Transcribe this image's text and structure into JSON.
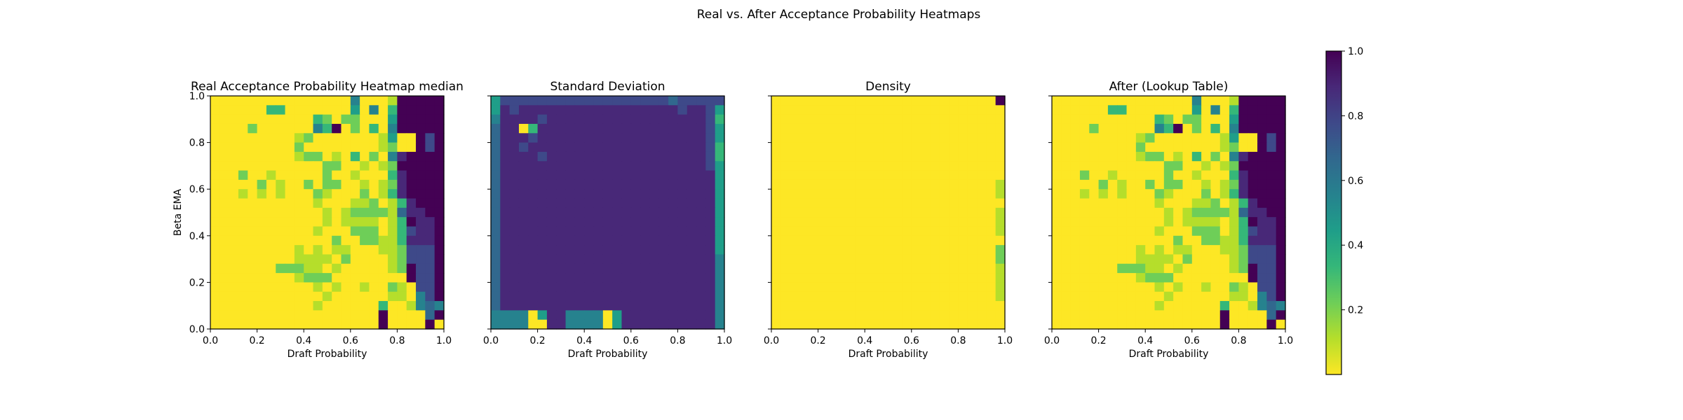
{
  "figure": {
    "suptitle": "Real vs. After Acceptance Probability Heatmaps"
  },
  "colormap": {
    "name": "viridis_r",
    "stops": [
      "#fde725",
      "#b5de2b",
      "#6ece58",
      "#35b779",
      "#1f9e89",
      "#26828e",
      "#31688e",
      "#3e4989",
      "#482878",
      "#440154"
    ]
  },
  "colorbar": {
    "min": 0.0,
    "max": 1.0,
    "ticks": [
      0.2,
      0.4,
      0.6,
      0.8,
      1.0
    ],
    "tick_labels": [
      "0.2",
      "0.4",
      "0.6",
      "0.8",
      "1.0"
    ]
  },
  "axes_common": {
    "xlabel": "Draft Probability",
    "ylabel": "Beta EMA",
    "xticks": [
      "0.0",
      "0.2",
      "0.4",
      "0.6",
      "0.8",
      "1.0"
    ],
    "yticks": [
      "0.0",
      "0.2",
      "0.4",
      "0.6",
      "0.8",
      "1.0"
    ],
    "xlim": [
      0,
      1
    ],
    "ylim": [
      0,
      1
    ]
  },
  "chart_data": [
    {
      "type": "heatmap",
      "title": "Real Acceptance Probability Heatmap median",
      "xlabel": "Draft Probability",
      "ylabel": "Beta EMA",
      "xlim": [
        0,
        1
      ],
      "ylim": [
        0,
        1
      ],
      "rows_top_to_bottom": [
        "0000000000000005000199999",
        "0000003300000004050399999",
        "0000000000032022000499999",
        "0000200000053902030599999",
        "0000000001200000001400979",
        "0000000002000000001200979",
        "0000000001220103020589999",
        "0000000000002200101299999",
        "0002001000002001000389999",
        "0000020100202200101289999",
        "0001010100021000201389999",
        "0000000000010001120138999",
        "0000000000001012222168899",
        "0000000000001011110139889",
        "0000000000010002220137889",
        "0000000000000200221138889",
        "0000000001010110001127779",
        "0000000001111020000127779",
        "0000000222110100000129779",
        "0000000001222000000009779",
        "0000000000010100100210779",
        "0000000000001000000110579",
        "0000000000010000003001565",
        "0000000000000000009000069",
        "0000000000000000009000090"
      ]
    },
    {
      "type": "heatmap",
      "title": "Standard Deviation",
      "xlabel": "Draft Probability",
      "ylabel": "",
      "xlim": [
        0,
        1
      ],
      "ylim": [
        0,
        1
      ],
      "rows_top_to_bottom": [
        "4777777777777777777677777",
        "4878888888888888888878874",
        "5888878888888888888888873",
        "6880388888888888888888874",
        "6888788888888888888888874",
        "6887888888888888888888873",
        "6888878888888888888888873",
        "6888888888888888888888874",
        "6888888888888888888888884",
        "6888888888888888888888884",
        "6888888888888888888888884",
        "6888888888888888888888884",
        "6888888888888888888888884",
        "6888888888888888888888884",
        "6888888888888888888888884",
        "6888888888888888888888884",
        "6888888888888888888888884",
        "6888888888888888888888885",
        "6888888888888888888888885",
        "6888888888888888888888885",
        "6888888888888888888888885",
        "6888888888888888888888885",
        "6888888888888888888888885",
        "5555048855550488888888885",
        "5555008855550488888888885"
      ]
    },
    {
      "type": "heatmap",
      "title": "Density",
      "xlabel": "Draft Probability",
      "ylabel": "",
      "xlim": [
        0,
        1
      ],
      "ylim": [
        0,
        1
      ],
      "rows_top_to_bottom": [
        "0000000000000000000000009",
        "0000000000000000000000000",
        "0000000000000000000000000",
        "0000000000000000000000000",
        "0000000000000000000000000",
        "0000000000000000000000000",
        "0000000000000000000000000",
        "0000000000000000000000000",
        "0000000000000000000000000",
        "0000000000000000000000001",
        "0000000000000000000000001",
        "0000000000000000000000000",
        "0000000000000000000000001",
        "0000000000000000000000001",
        "0000000000000000000000001",
        "0000000000000000000000000",
        "0000000000000000000000002",
        "0000000000000000000000002",
        "0000000000000000000000001",
        "0000000000000000000000001",
        "0000000000000000000000001",
        "0000000000000000000000001",
        "0000000000000000000000000",
        "0000000000000000000000000",
        "0000000000000000000000000"
      ]
    },
    {
      "type": "heatmap",
      "title": "After (Lookup Table)",
      "xlabel": "Draft Probability",
      "ylabel": "",
      "xlim": [
        0,
        1
      ],
      "ylim": [
        0,
        1
      ],
      "rows_top_to_bottom": [
        "0000000000000005000199999",
        "0000003300000004050399999",
        "0000000000032022000499999",
        "0000200000053902030599999",
        "0000000001200000001400979",
        "0000000002000000001200979",
        "0000000001220103020589999",
        "0000000000002200101299999",
        "0002001000002001000389999",
        "0000020100202200101289999",
        "0001010100021000201389999",
        "0000000000010001120138999",
        "0000000000001012222168899",
        "0000000000001011110139889",
        "0000000000010002220137889",
        "0000000000000200221138889",
        "0000000001010110001127779",
        "0000000001111020000127779",
        "0000000222110100000129779",
        "0000000001222000000009779",
        "0000000000010100100210779",
        "0000000000001000000110579",
        "0000000000010000003001565",
        "0000000000000000009000069",
        "0000000000000000009000090"
      ]
    }
  ]
}
